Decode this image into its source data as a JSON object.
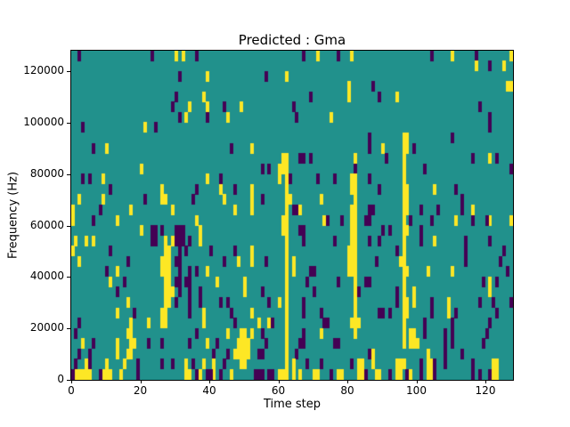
{
  "figure": {
    "title": "Predicted : Gma"
  },
  "chart_data": {
    "type": "heatmap",
    "title": "Predicted : Gma",
    "xlabel": "Time step",
    "ylabel": "Frequency (Hz)",
    "x_ticks": [
      0,
      20,
      40,
      60,
      80,
      100,
      120
    ],
    "y_ticks": [
      0,
      20000,
      40000,
      60000,
      80000,
      100000,
      120000
    ],
    "x_range": [
      0,
      128
    ],
    "y_range": [
      0,
      128000
    ],
    "n_cols": 128,
    "n_rows": 32,
    "colors": {
      "background": "#ffffff",
      "mid": "#21918c",
      "low": "#440154",
      "high": "#fde725",
      "axis": "#000000"
    },
    "value_legend": {
      "mid": 0.5,
      "low": 0.0,
      "high": 1.0
    },
    "rows_top_to_bottom": [
      {
        "y": [
          30,
          32,
          71,
          81,
          110,
          127
        ],
        "p": [
          2,
          23,
          36,
          67,
          77,
          104,
          117
        ]
      },
      {
        "y": [
          117,
          125
        ],
        "p": [
          121
        ]
      },
      {
        "y": [
          39,
          62
        ],
        "p": [
          31,
          56
        ]
      },
      {
        "y": [
          80,
          126,
          127
        ],
        "p": [
          87
        ]
      },
      {
        "y": [
          38,
          80,
          94
        ],
        "p": [
          30,
          69,
          89
        ]
      },
      {
        "y": [
          34,
          39,
          49
        ],
        "p": [
          29,
          44,
          64,
          118
        ]
      },
      {
        "y": [
          33,
          45,
          75
        ],
        "p": [
          31,
          39,
          65,
          121
        ]
      },
      {
        "y": [
          21
        ],
        "p": [
          3,
          24,
          121
        ]
      },
      {
        "y": [
          96,
          97
        ],
        "p": [
          86,
          110
        ]
      },
      {
        "y": [
          10,
          52,
          90,
          96,
          97
        ],
        "p": [
          6,
          46,
          86,
          99
        ]
      },
      {
        "y": [
          61,
          62,
          82,
          96,
          121
        ],
        "p": [
          66,
          67,
          69,
          91,
          116,
          123
        ]
      },
      {
        "y": [
          20,
          60,
          61,
          62,
          96
        ],
        "p": [
          55,
          57,
          82,
          102,
          127
        ]
      },
      {
        "y": [
          9,
          39,
          60,
          62,
          81,
          82,
          96
        ],
        "p": [
          3,
          5,
          43,
          63,
          71,
          76,
          86
        ]
      },
      {
        "y": [
          26,
          43,
          52,
          62,
          81,
          82,
          96,
          97,
          105
        ],
        "p": [
          11,
          36,
          47,
          89,
          111
        ]
      },
      {
        "y": [
          2,
          9,
          26,
          27,
          44,
          52,
          62,
          63,
          72,
          82,
          96,
          97
        ],
        "p": [
          21,
          35,
          55,
          113
        ]
      },
      {
        "y": [
          0,
          17,
          29,
          47,
          52,
          62,
          66,
          81,
          82,
          96,
          97,
          116
        ],
        "p": [
          8,
          64,
          65,
          86,
          87,
          101,
          106,
          113
        ]
      },
      {
        "y": [
          0,
          13,
          36,
          61,
          62,
          73,
          81,
          82,
          96,
          111,
          121,
          127
        ],
        "p": [
          6,
          74,
          78,
          85,
          86,
          98,
          104,
          116,
          120
        ]
      },
      {
        "y": [
          20,
          37,
          61,
          62,
          81,
          82,
          96,
          97
        ],
        "p": [
          23,
          24,
          26,
          30,
          31,
          32,
          66,
          67,
          90,
          92,
          101
        ]
      },
      {
        "y": [
          1,
          4,
          6,
          27,
          29,
          37,
          62,
          81,
          82,
          96,
          105
        ],
        "p": [
          23,
          24,
          30,
          31,
          32,
          34,
          67,
          76,
          86,
          89,
          101,
          114,
          121
        ]
      },
      {
        "y": [
          0,
          27,
          28,
          52,
          62,
          80,
          81,
          82,
          96
        ],
        "p": [
          11,
          31,
          33,
          40,
          47,
          94,
          114,
          125
        ]
      },
      {
        "y": [
          2,
          26,
          27,
          28,
          48,
          52,
          62,
          64,
          80,
          81,
          82,
          95,
          96
        ],
        "p": [
          16,
          30,
          31,
          44,
          56,
          88,
          114,
          124
        ]
      },
      {
        "y": [
          13,
          26,
          27,
          28,
          39,
          62,
          64,
          80,
          81,
          82,
          96,
          97,
          103,
          110
        ],
        "p": [
          10,
          31,
          34,
          36,
          69,
          70,
          126
        ]
      },
      {
        "y": [
          11,
          27,
          28,
          42,
          50,
          62,
          82,
          96,
          121
        ],
        "p": [
          15,
          30,
          31,
          33,
          34,
          68,
          77,
          85,
          86,
          119,
          123
        ]
      },
      {
        "y": [
          27,
          28,
          29,
          50,
          62,
          82,
          96,
          99,
          121
        ],
        "p": [
          13,
          31,
          34,
          37,
          55,
          70,
          83,
          94
        ]
      },
      {
        "y": [
          16,
          27,
          28,
          60,
          62,
          82,
          96,
          97,
          99,
          109
        ],
        "p": [
          30,
          34,
          37,
          43,
          45,
          57,
          67,
          94,
          104,
          118,
          122,
          127
        ]
      },
      {
        "y": [
          13,
          26,
          27,
          38,
          52,
          62,
          82,
          96,
          97,
          109
        ],
        "p": [
          18,
          34,
          46,
          67,
          72,
          89,
          90,
          92,
          104,
          111,
          123
        ]
      },
      {
        "y": [
          17,
          22,
          26,
          27,
          38,
          54,
          57,
          62,
          81,
          82,
          83,
          96
        ],
        "p": [
          2,
          47,
          58,
          73,
          74,
          102,
          110,
          121
        ]
      },
      {
        "y": [
          16,
          17,
          45,
          49,
          50,
          52,
          62,
          72,
          82,
          96,
          98,
          99
        ],
        "p": [
          1,
          36,
          55,
          67,
          102,
          108,
          110,
          120
        ]
      },
      {
        "y": [
          3,
          13,
          17,
          18,
          39,
          48,
          49,
          50,
          51,
          62,
          96,
          98,
          99,
          100
        ],
        "p": [
          6,
          22,
          26,
          34,
          42,
          56,
          66,
          67,
          76,
          77,
          108,
          110,
          119
        ]
      },
      {
        "y": [
          13,
          16,
          17,
          47,
          48,
          49,
          50,
          51,
          62,
          87,
          103
        ],
        "p": [
          2,
          5,
          41,
          45,
          54,
          55,
          65,
          86,
          108,
          113
        ]
      },
      {
        "y": [
          4,
          10,
          15,
          33,
          38,
          41,
          49,
          50,
          62,
          64,
          83,
          84,
          87,
          94,
          95,
          96,
          103,
          104,
          122,
          123
        ],
        "p": [
          1,
          5,
          19,
          26,
          29,
          35,
          44,
          68,
          72,
          81,
          101,
          105,
          108,
          116
        ]
      },
      {
        "y": [
          1,
          2,
          3,
          4,
          5,
          9,
          10,
          11,
          14,
          33,
          34,
          37,
          41,
          46,
          60,
          61,
          62,
          64,
          66,
          70,
          71,
          77,
          78,
          83,
          84,
          88,
          89,
          94,
          95,
          98,
          103,
          104,
          122,
          123
        ],
        "p": [
          0,
          8,
          19,
          36,
          39,
          40,
          43,
          53,
          54,
          55,
          57,
          58,
          75,
          85,
          92,
          97,
          101,
          105,
          116,
          118,
          121
        ]
      }
    ]
  }
}
